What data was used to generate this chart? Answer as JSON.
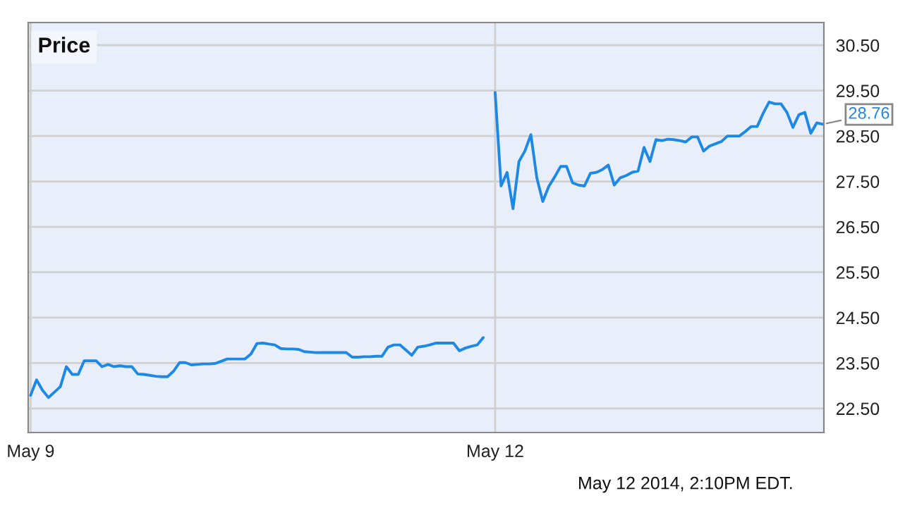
{
  "chart_data": {
    "type": "line",
    "title": "Price",
    "categories": [
      "May 9",
      null,
      null,
      null,
      null,
      null,
      null,
      null,
      null,
      null,
      null,
      null,
      null,
      null,
      null,
      null,
      null,
      null,
      null,
      null,
      null,
      null,
      null,
      null,
      null,
      null,
      null,
      null,
      null,
      null,
      null,
      null,
      null,
      null,
      null,
      null,
      null,
      null,
      null,
      null,
      null,
      null,
      null,
      null,
      null,
      null,
      null,
      null,
      null,
      null,
      null,
      null,
      null,
      null,
      null,
      null,
      null,
      null,
      null,
      null,
      null,
      null,
      null,
      null,
      null,
      null,
      null,
      null,
      null,
      null,
      null,
      null,
      null,
      null,
      null,
      null,
      null,
      null,
      "May 12",
      null,
      null,
      null,
      null,
      null,
      null,
      null,
      null,
      null,
      null,
      null,
      null,
      null,
      null,
      null,
      null,
      null,
      null,
      null,
      null,
      null,
      null,
      null,
      null,
      null,
      null,
      null,
      null,
      null,
      null,
      null,
      null,
      null,
      null,
      null,
      null,
      null,
      null,
      null,
      null,
      null,
      null,
      null,
      null,
      null,
      null,
      null,
      null,
      null,
      null,
      null,
      null,
      null,
      null,
      null
    ],
    "series": [
      {
        "color": "#1e88e5",
        "values": [
          22.79,
          23.13,
          22.9,
          22.74,
          22.86,
          22.98,
          23.42,
          23.25,
          23.25,
          23.55,
          23.55,
          23.55,
          23.42,
          23.47,
          23.42,
          23.44,
          23.42,
          23.42,
          23.26,
          23.25,
          23.23,
          23.21,
          23.2,
          23.2,
          23.32,
          23.51,
          23.51,
          23.46,
          23.47,
          23.48,
          23.48,
          23.49,
          23.54,
          23.59,
          23.59,
          23.59,
          23.59,
          23.7,
          23.93,
          23.94,
          23.92,
          23.9,
          23.82,
          23.81,
          23.81,
          23.8,
          23.75,
          23.74,
          23.73,
          23.73,
          23.73,
          23.73,
          23.73,
          23.73,
          23.63,
          23.63,
          23.64,
          23.64,
          23.65,
          23.65,
          23.85,
          23.9,
          23.9,
          23.79,
          23.67,
          23.85,
          23.87,
          23.9,
          23.94,
          23.94,
          23.94,
          23.94,
          23.77,
          23.83,
          23.87,
          23.9,
          24.06,
          null,
          29.46,
          27.4,
          27.7,
          26.9,
          27.94,
          28.17,
          28.53,
          27.58,
          27.06,
          27.39,
          27.6,
          27.83,
          27.83,
          27.47,
          27.42,
          27.4,
          27.68,
          27.7,
          27.76,
          27.86,
          27.42,
          27.58,
          27.63,
          27.7,
          27.73,
          28.25,
          27.94,
          28.42,
          28.4,
          28.43,
          28.42,
          28.4,
          28.37,
          28.48,
          28.48,
          28.17,
          28.28,
          28.33,
          28.38,
          28.5,
          28.5,
          28.5,
          28.6,
          28.71,
          28.71,
          29.0,
          29.25,
          29.21,
          29.21,
          29.02,
          28.69,
          28.97,
          29.02,
          28.56,
          28.79,
          28.76
        ]
      }
    ],
    "ylim": [
      21.97,
      31.0
    ],
    "yticks": [
      {
        "value": 30.5,
        "label": "30.50"
      },
      {
        "value": 29.5,
        "label": "29.50"
      },
      {
        "value": 28.5,
        "label": "28.50"
      },
      {
        "value": 27.5,
        "label": "27.50"
      },
      {
        "value": 26.5,
        "label": "26.50"
      },
      {
        "value": 25.5,
        "label": "25.50"
      },
      {
        "value": 24.5,
        "label": "24.50"
      },
      {
        "value": 23.5,
        "label": "23.50"
      },
      {
        "value": 22.5,
        "label": "22.50"
      }
    ],
    "grid": true,
    "annotations": [
      "28.76",
      "May 12 2014, 2:10PM EDT."
    ]
  }
}
